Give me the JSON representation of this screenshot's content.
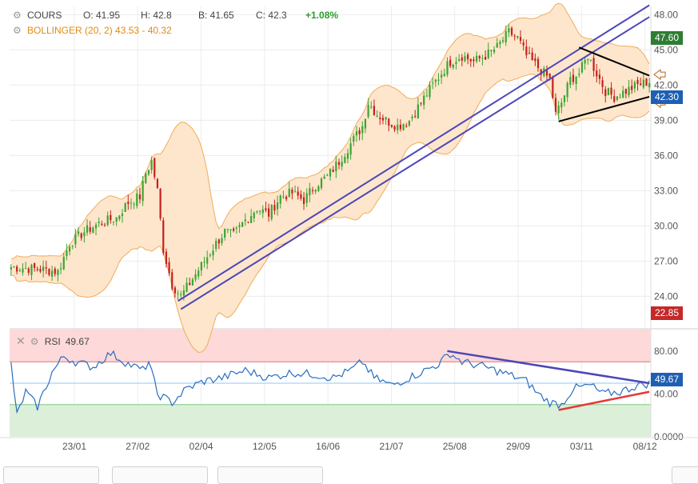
{
  "legend": {
    "cours_label": "COURS",
    "open": "O: 41.95",
    "high": "H: 42.8",
    "low": "B: 41.65",
    "close": "C: 42.3",
    "change": "+1.08%",
    "bollinger": "BOLLINGER (20, 2) 43.53 - 40.32"
  },
  "rsi": {
    "label": "RSI",
    "value": "49.67"
  },
  "badges": {
    "high": "47.60",
    "last": "42.30",
    "low": "22.85",
    "rsi": "49.67"
  },
  "colors": {
    "up": "#3aa532",
    "down": "#c4201c",
    "band_fill": "#fde6cc",
    "band_line": "#f2ab5a",
    "trend_blue": "#4b47b8",
    "rsi_line": "#2a6dbf",
    "overbought": "#fdd9d9",
    "oversold": "#dcefd9",
    "badge_green": "#2e7d32",
    "badge_blue": "#1e5fb4",
    "badge_red": "#c62828",
    "trend_red": "#e53935"
  },
  "chart_data": [
    {
      "type": "candlestick",
      "x_tick_labels": [
        "23/01",
        "27/02",
        "02/04",
        "12/05",
        "16/06",
        "21/07",
        "25/08",
        "29/09",
        "03/11",
        "08/12"
      ],
      "y_tick_labels": [
        "24.00",
        "27.00",
        "30.00",
        "33.00",
        "36.00",
        "39.00",
        "42.00",
        "45.00",
        "48.00"
      ],
      "ylim": [
        21.3,
        48.7
      ],
      "close_path": [
        [
          0,
          26.5
        ],
        [
          10,
          26.3
        ],
        [
          16,
          26.1
        ],
        [
          20,
          28.5
        ],
        [
          25,
          29.5
        ],
        [
          30,
          30.2
        ],
        [
          36,
          30.7
        ],
        [
          40,
          32
        ],
        [
          44,
          32.5
        ],
        [
          46,
          34.5
        ],
        [
          48,
          35.5
        ],
        [
          50,
          33
        ],
        [
          52,
          28
        ],
        [
          55,
          25
        ],
        [
          58,
          24
        ],
        [
          62,
          25.5
        ],
        [
          66,
          27
        ],
        [
          70,
          28.5
        ],
        [
          73,
          29.5
        ],
        [
          76,
          29.2
        ],
        [
          80,
          30.5
        ],
        [
          84,
          31.5
        ],
        [
          88,
          31
        ],
        [
          92,
          32.5
        ],
        [
          96,
          32.8
        ],
        [
          100,
          32.2
        ],
        [
          104,
          33.5
        ],
        [
          108,
          34.2
        ],
        [
          112,
          35.5
        ],
        [
          116,
          37
        ],
        [
          120,
          38.5
        ],
        [
          122,
          40.5
        ],
        [
          125,
          39.5
        ],
        [
          128,
          39
        ],
        [
          132,
          38.5
        ],
        [
          136,
          39
        ],
        [
          140,
          40.5
        ],
        [
          144,
          42
        ],
        [
          147,
          43
        ],
        [
          150,
          44
        ],
        [
          154,
          44.5
        ],
        [
          158,
          44
        ],
        [
          162,
          44.5
        ],
        [
          166,
          45.2
        ],
        [
          170,
          46.5
        ],
        [
          173,
          46
        ],
        [
          176,
          44.5
        ],
        [
          180,
          43.5
        ],
        [
          184,
          42.5
        ],
        [
          186,
          39.5
        ],
        [
          188,
          40.5
        ],
        [
          191,
          42.5
        ],
        [
          194,
          43
        ],
        [
          197,
          44.5
        ],
        [
          200,
          43
        ],
        [
          203,
          41.5
        ],
        [
          206,
          41
        ],
        [
          210,
          41.5
        ],
        [
          214,
          42
        ],
        [
          218,
          42.3
        ]
      ],
      "bollinger": {
        "upper_last": 43.53,
        "lower_last": 40.32
      },
      "trendlines": [
        {
          "name": "",
          "from": [
            57,
            23.6
          ],
          "to": [
            218,
            48.8
          ]
        },
        {
          "name": "",
          "from": [
            58,
            22.9
          ],
          "to": [
            218,
            47.8
          ]
        }
      ],
      "triangle": {
        "upper": [
          [
            194,
            45.2
          ],
          [
            218,
            42.8
          ]
        ],
        "lower": [
          [
            187,
            38.9
          ],
          [
            218,
            41
          ]
        ]
      },
      "badges": {
        "high": 47.6,
        "last": 42.3,
        "low": 22.85
      }
    },
    {
      "type": "line",
      "series_name": "RSI",
      "y_tick_labels": [
        "0.0000",
        "40.00",
        "80.00"
      ],
      "ylim": [
        0,
        100
      ],
      "overbought": 70,
      "oversold": 30,
      "mid": 50,
      "values_path": [
        [
          0,
          68
        ],
        [
          2,
          20
        ],
        [
          5,
          42
        ],
        [
          9,
          28
        ],
        [
          14,
          60
        ],
        [
          18,
          75
        ],
        [
          22,
          70
        ],
        [
          28,
          65
        ],
        [
          34,
          78
        ],
        [
          40,
          68
        ],
        [
          45,
          62
        ],
        [
          47,
          70
        ],
        [
          50,
          40
        ],
        [
          55,
          32
        ],
        [
          60,
          45
        ],
        [
          66,
          52
        ],
        [
          72,
          55
        ],
        [
          80,
          62
        ],
        [
          88,
          55
        ],
        [
          96,
          60
        ],
        [
          104,
          58
        ],
        [
          110,
          55
        ],
        [
          116,
          62
        ],
        [
          120,
          70
        ],
        [
          124,
          55
        ],
        [
          130,
          48
        ],
        [
          140,
          60
        ],
        [
          146,
          68
        ],
        [
          150,
          78
        ],
        [
          154,
          70
        ],
        [
          162,
          65
        ],
        [
          170,
          58
        ],
        [
          176,
          52
        ],
        [
          180,
          40
        ],
        [
          184,
          32
        ],
        [
          188,
          30
        ],
        [
          192,
          45
        ],
        [
          198,
          48
        ],
        [
          202,
          40
        ],
        [
          208,
          42
        ],
        [
          214,
          48
        ],
        [
          218,
          49.67
        ]
      ],
      "trendlines": [
        {
          "name": "",
          "from": [
            149,
            80
          ],
          "to": [
            218,
            50
          ],
          "color": "blue"
        },
        {
          "name": "",
          "from": [
            187,
            25
          ],
          "to": [
            218,
            42
          ],
          "color": "red"
        }
      ],
      "last_value": 49.67
    }
  ]
}
